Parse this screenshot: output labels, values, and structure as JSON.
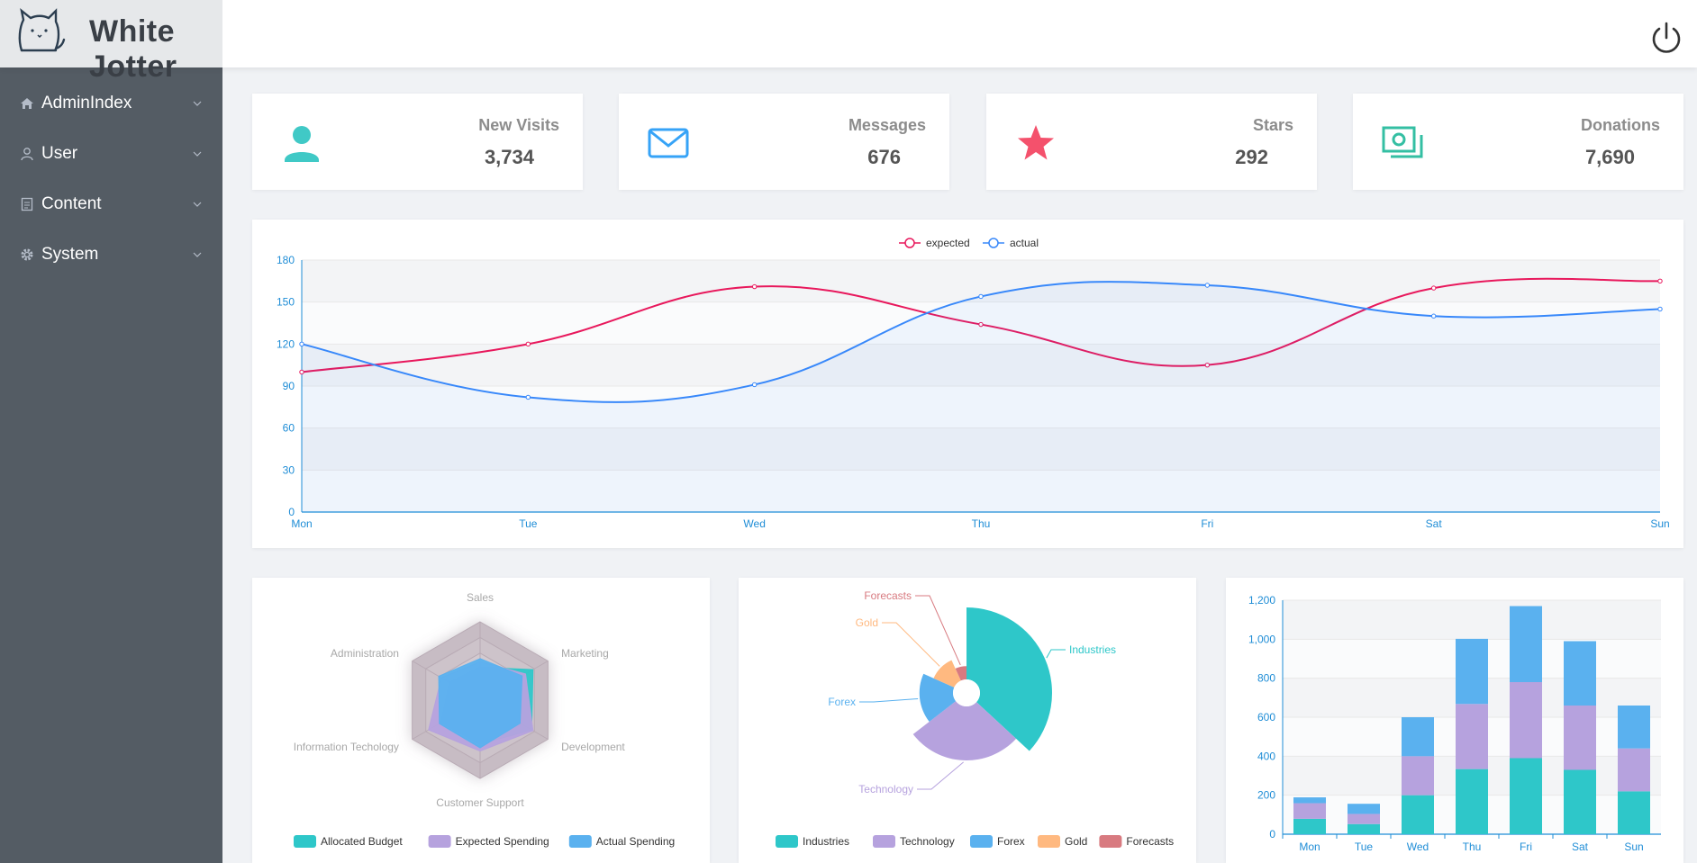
{
  "app": {
    "brand": "White Jotter"
  },
  "header": {
    "power_icon": "power-icon",
    "logo_icon": "cat-logo-icon"
  },
  "sidebar": {
    "items": [
      {
        "label": "AdminIndex",
        "icon": "home-icon"
      },
      {
        "label": "User",
        "icon": "user-icon"
      },
      {
        "label": "Content",
        "icon": "document-icon"
      },
      {
        "label": "System",
        "icon": "gear-icon"
      }
    ]
  },
  "stats": [
    {
      "label": "New Visits",
      "value": "3,734",
      "icon": "user-icon",
      "color": "#40c9c6"
    },
    {
      "label": "Messages",
      "value": "676",
      "icon": "mail-icon",
      "color": "#36a3f7"
    },
    {
      "label": "Stars",
      "value": "292",
      "icon": "star-icon",
      "color": "#f4516c"
    },
    {
      "label": "Donations",
      "value": "7,690",
      "icon": "money-icon",
      "color": "#34bfa3"
    }
  ],
  "chart_data": [
    {
      "type": "line",
      "categories": [
        "Mon",
        "Tue",
        "Wed",
        "Thu",
        "Fri",
        "Sat",
        "Sun"
      ],
      "series": [
        {
          "name": "expected",
          "values": [
            100,
            120,
            161,
            134,
            105,
            160,
            165
          ],
          "color": "#e8185c"
        },
        {
          "name": "actual",
          "values": [
            120,
            82,
            91,
            154,
            162,
            140,
            145
          ],
          "color": "#3888fa"
        }
      ],
      "yticks": [
        "0",
        "30",
        "60",
        "90",
        "120",
        "150",
        "180"
      ],
      "ylim": [
        0,
        180
      ],
      "legend": "top-center"
    },
    {
      "type": "radar",
      "indicators": [
        "Sales",
        "Marketing",
        "Development",
        "Customer Support",
        "Information Techology",
        "Administration"
      ],
      "max": 100,
      "series": [
        {
          "name": "Allocated Budget",
          "values": [
            42,
            78,
            76,
            56,
            57,
            45
          ],
          "color": "#2ec7c9"
        },
        {
          "name": "Expected Spending",
          "values": [
            49,
            67,
            78,
            65,
            76,
            57
          ],
          "color": "#b6a2de"
        },
        {
          "name": "Actual Spending",
          "values": [
            53,
            62,
            59,
            61,
            60,
            61
          ],
          "color": "#5ab1ef"
        }
      ],
      "legend": "bottom-center"
    },
    {
      "type": "pie",
      "subtype": "rose",
      "slices": [
        {
          "name": "Industries",
          "value": 320,
          "color": "#2ec7c9"
        },
        {
          "name": "Technology",
          "value": 240,
          "color": "#b6a2de"
        },
        {
          "name": "Forex",
          "value": 149,
          "color": "#5ab1ef"
        },
        {
          "name": "Gold",
          "value": 100,
          "color": "#ffb980"
        },
        {
          "name": "Forecasts",
          "value": 59,
          "color": "#d87a80"
        }
      ],
      "legend": "bottom-center"
    },
    {
      "type": "bar",
      "stacked": true,
      "categories": [
        "Mon",
        "Tue",
        "Wed",
        "Thu",
        "Fri",
        "Sat",
        "Sun"
      ],
      "series": [
        {
          "name": "Allocated Budget",
          "values": [
            79,
            52,
            200,
            334,
            390,
            330,
            220
          ],
          "color": "#2ec7c9"
        },
        {
          "name": "Expected Spending",
          "values": [
            80,
            52,
            200,
            334,
            390,
            330,
            220
          ],
          "color": "#b6a2de"
        },
        {
          "name": "Actual Spending",
          "values": [
            30,
            52,
            200,
            334,
            390,
            330,
            220
          ],
          "color": "#5ab1ef"
        }
      ],
      "yticks": [
        "0",
        "200",
        "400",
        "600",
        "800",
        "1,000",
        "1,200"
      ],
      "ylim": [
        0,
        1200
      ]
    }
  ]
}
